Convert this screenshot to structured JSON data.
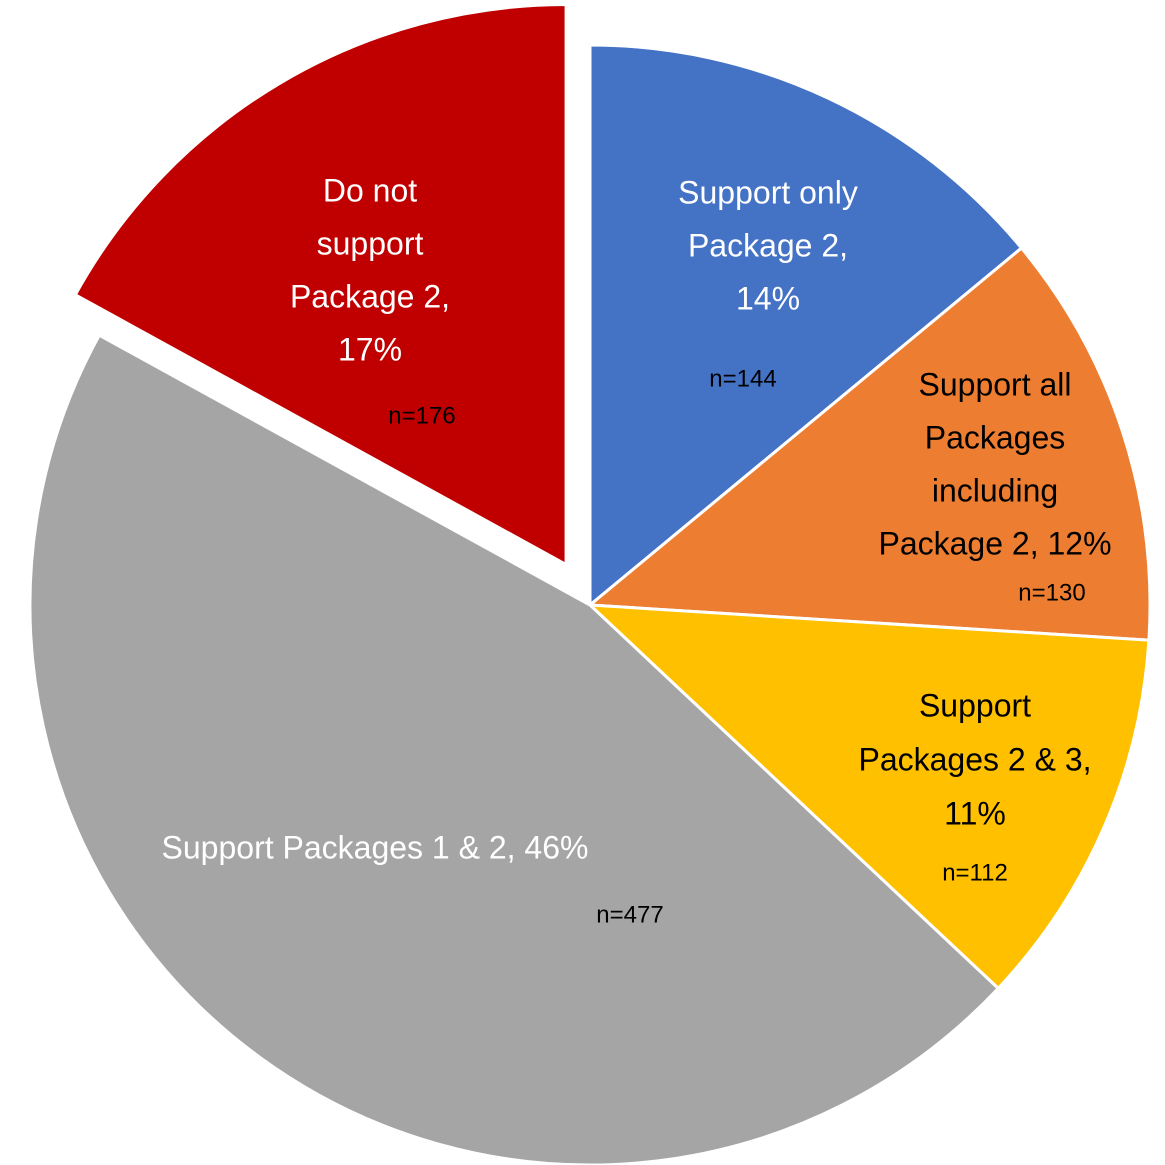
{
  "chart_data": {
    "type": "pie",
    "labels": [
      [
        "Support only",
        "Package 2,",
        "14%"
      ],
      [
        "Support all",
        "Packages",
        "including",
        "Package 2, 12%"
      ],
      [
        "Support",
        "Packages 2 & 3,",
        "11%"
      ],
      [
        "Support Packages 1 & 2, 46%"
      ],
      [
        "Do not",
        "support",
        "Package 2,",
        "17%"
      ]
    ],
    "values": [
      14,
      12,
      11,
      46,
      17
    ],
    "annotations": [
      "n=144",
      "n=130",
      "n=112",
      "n=477",
      "n=176"
    ],
    "colors": [
      "#4472c4",
      "#ed7d31",
      "#ffc000",
      "#a5a5a5",
      "#c00000"
    ],
    "label_colors": [
      "#ffffff",
      "#000000",
      "#000000",
      "#ffffff",
      "#ffffff"
    ],
    "exploded": [
      false,
      false,
      false,
      false,
      true
    ]
  }
}
